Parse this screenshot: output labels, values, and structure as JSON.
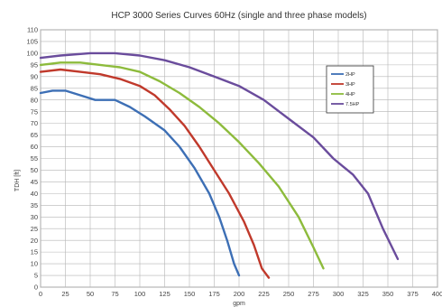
{
  "chart_data": {
    "type": "line",
    "title": "HCP 3000 Series Curves 60Hz (single and three phase models)",
    "xlabel": "gpm",
    "ylabel": "TDH [ft]",
    "xlim": [
      0,
      400
    ],
    "ylim": [
      0,
      110
    ],
    "x_ticks": [
      "0",
      "25",
      "50",
      "75",
      "100",
      "125",
      "150",
      "175",
      "200",
      "225",
      "250",
      "275",
      "300",
      "325",
      "350",
      "375",
      "400"
    ],
    "y_ticks": [
      "0",
      "5",
      "10",
      "15",
      "20",
      "25",
      "30",
      "35",
      "40",
      "45",
      "50",
      "55",
      "60",
      "65",
      "70",
      "75",
      "80",
      "85",
      "90",
      "95",
      "100",
      "105",
      "110"
    ],
    "grid": true,
    "legend_position": "top-right",
    "series": [
      {
        "name": "2HP",
        "color": "#3d6fb5",
        "points": [
          [
            0,
            83
          ],
          [
            12,
            84
          ],
          [
            25,
            84
          ],
          [
            40,
            82
          ],
          [
            55,
            80
          ],
          [
            75,
            80
          ],
          [
            90,
            77
          ],
          [
            105,
            73
          ],
          [
            125,
            67
          ],
          [
            140,
            60
          ],
          [
            155,
            51
          ],
          [
            170,
            40
          ],
          [
            180,
            30
          ],
          [
            188,
            20
          ],
          [
            195,
            10
          ],
          [
            200,
            5
          ]
        ]
      },
      {
        "name": "3HP",
        "color": "#c0392b",
        "points": [
          [
            0,
            92
          ],
          [
            20,
            93
          ],
          [
            40,
            92
          ],
          [
            60,
            91
          ],
          [
            80,
            89
          ],
          [
            100,
            86
          ],
          [
            115,
            82
          ],
          [
            130,
            76
          ],
          [
            145,
            69
          ],
          [
            160,
            60
          ],
          [
            175,
            50
          ],
          [
            190,
            40
          ],
          [
            205,
            28
          ],
          [
            215,
            18
          ],
          [
            223,
            8
          ],
          [
            230,
            4
          ]
        ]
      },
      {
        "name": "4HP",
        "color": "#8dbb3c",
        "points": [
          [
            0,
            95
          ],
          [
            20,
            96
          ],
          [
            40,
            96
          ],
          [
            60,
            95
          ],
          [
            80,
            94
          ],
          [
            100,
            92
          ],
          [
            120,
            88
          ],
          [
            140,
            83
          ],
          [
            160,
            77
          ],
          [
            180,
            70
          ],
          [
            200,
            62
          ],
          [
            220,
            53
          ],
          [
            240,
            43
          ],
          [
            260,
            30
          ],
          [
            275,
            17
          ],
          [
            285,
            8
          ]
        ]
      },
      {
        "name": "7.5HP",
        "color": "#6a4c9c",
        "points": [
          [
            0,
            98
          ],
          [
            20,
            99
          ],
          [
            50,
            100
          ],
          [
            75,
            100
          ],
          [
            100,
            99
          ],
          [
            125,
            97
          ],
          [
            150,
            94
          ],
          [
            175,
            90
          ],
          [
            200,
            86
          ],
          [
            225,
            80
          ],
          [
            250,
            72
          ],
          [
            275,
            64
          ],
          [
            295,
            55
          ],
          [
            315,
            48
          ],
          [
            330,
            40
          ],
          [
            345,
            25
          ],
          [
            360,
            12
          ]
        ]
      }
    ]
  }
}
